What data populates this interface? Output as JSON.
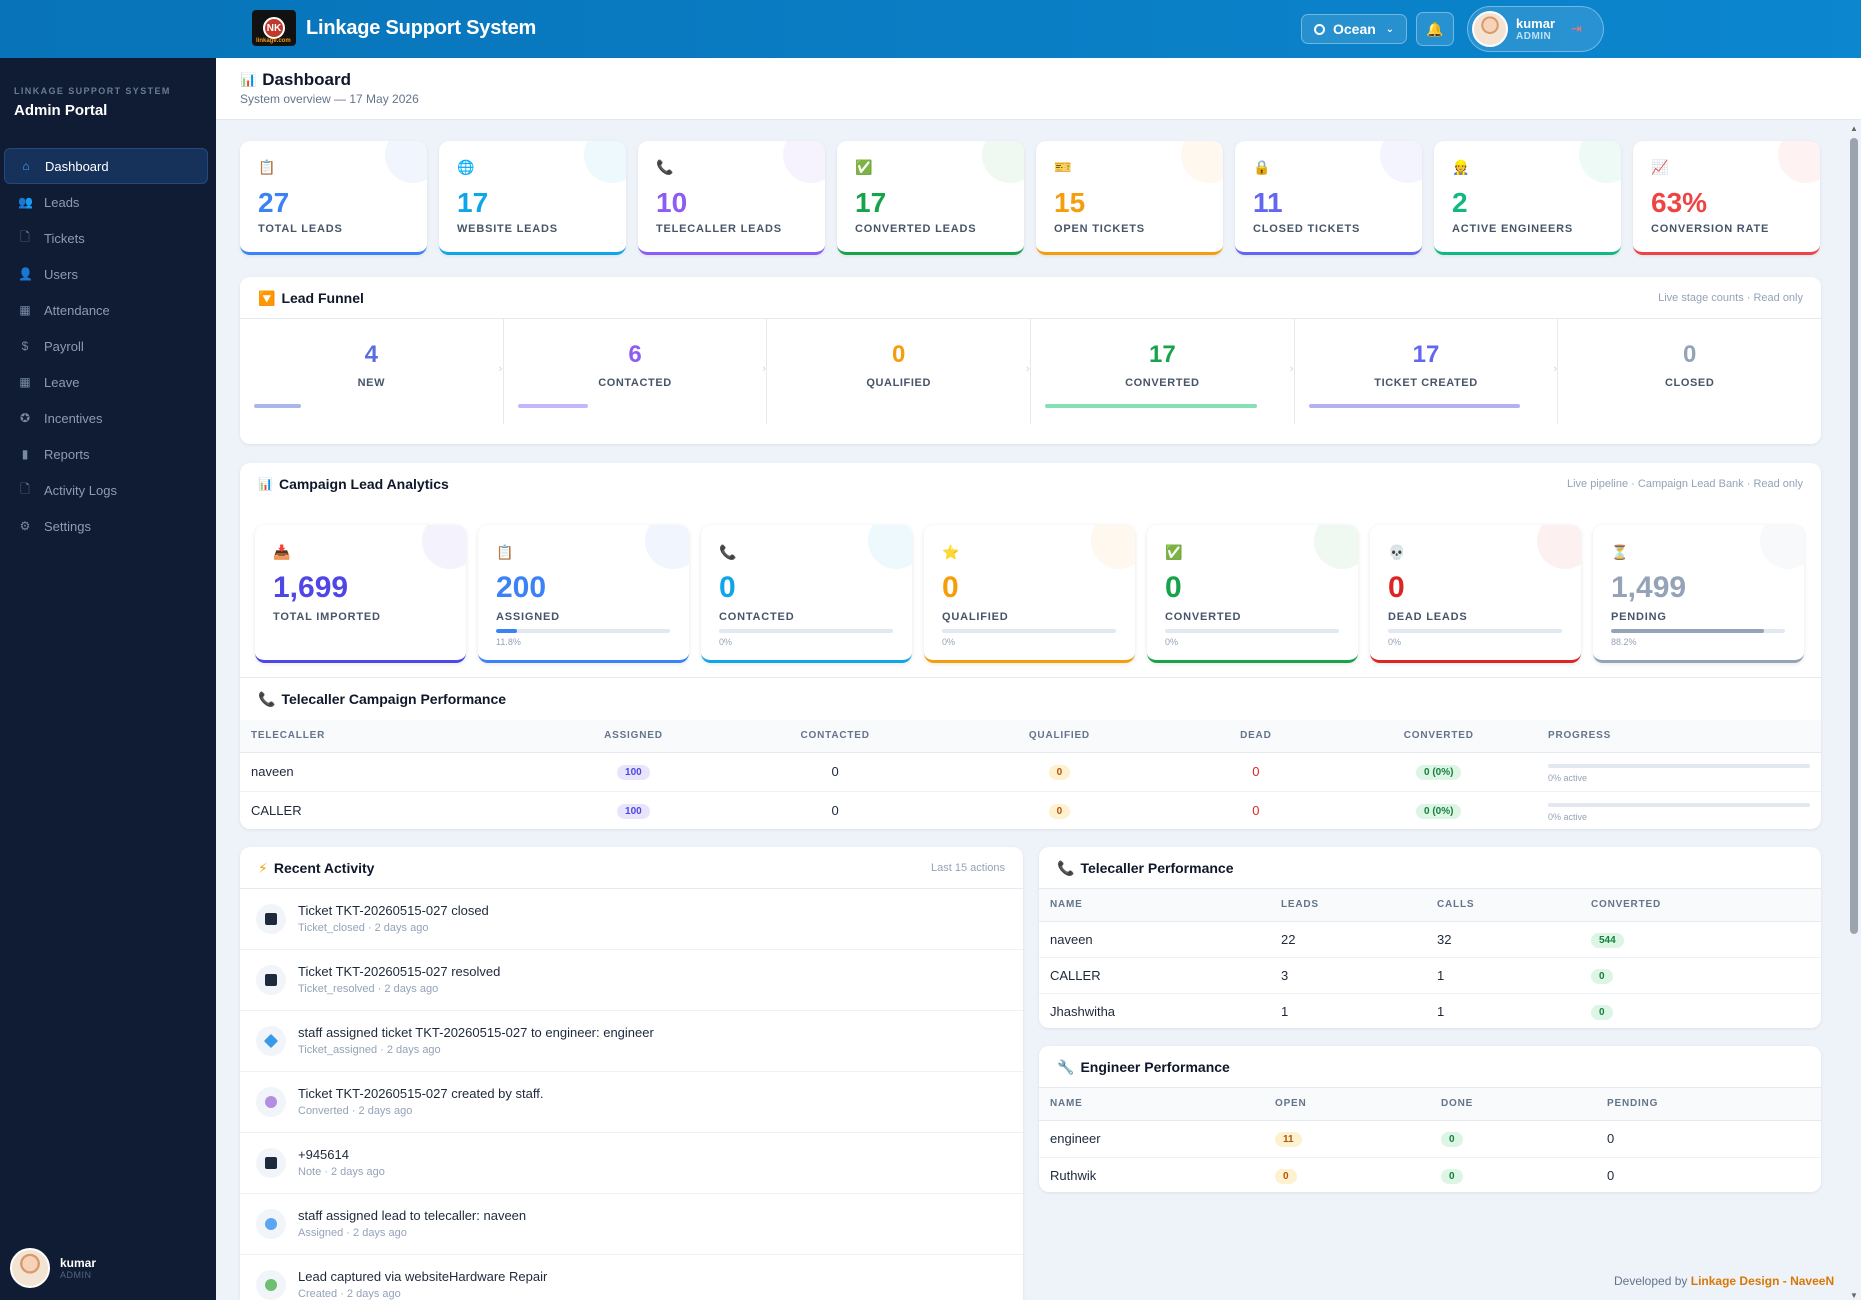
{
  "header": {
    "app_title": "Linkage Support System",
    "logo_text": "NK",
    "logo_small": "linkage.com",
    "theme_label": "Ocean",
    "user_name": "kumar",
    "user_role": "ADMIN"
  },
  "sidebar": {
    "system_label": "LINKAGE SUPPORT SYSTEM",
    "portal_title": "Admin Portal",
    "items": [
      {
        "label": "Dashboard",
        "icon": "home-icon",
        "active": true
      },
      {
        "label": "Leads",
        "icon": "users-icon"
      },
      {
        "label": "Tickets",
        "icon": "file-icon"
      },
      {
        "label": "Users",
        "icon": "user-icon"
      },
      {
        "label": "Attendance",
        "icon": "calendar-icon"
      },
      {
        "label": "Payroll",
        "icon": "dollar-icon"
      },
      {
        "label": "Leave",
        "icon": "calendar-icon"
      },
      {
        "label": "Incentives",
        "icon": "award-icon"
      },
      {
        "label": "Reports",
        "icon": "bar-chart-icon"
      },
      {
        "label": "Activity Logs",
        "icon": "file-icon"
      },
      {
        "label": "Settings",
        "icon": "gear-icon"
      }
    ],
    "footer_user": "kumar",
    "footer_role": "ADMIN"
  },
  "page": {
    "title": "Dashboard",
    "subtitle": "System overview — 17 May 2026"
  },
  "stats": [
    {
      "value": "27",
      "label": "TOTAL LEADS",
      "icon": "clipboard-icon",
      "glyph": "📋",
      "color": "#3b82f6"
    },
    {
      "value": "17",
      "label": "WEBSITE LEADS",
      "icon": "globe-icon",
      "glyph": "🌐",
      "color": "#0ea5e9"
    },
    {
      "value": "10",
      "label": "TELECALLER LEADS",
      "icon": "phone-icon",
      "glyph": "📞",
      "color": "#8b5cf6"
    },
    {
      "value": "17",
      "label": "CONVERTED LEADS",
      "icon": "check-icon",
      "glyph": "✅",
      "color": "#16a34a"
    },
    {
      "value": "15",
      "label": "OPEN TICKETS",
      "icon": "ticket-icon",
      "glyph": "🎫",
      "color": "#f59e0b"
    },
    {
      "value": "11",
      "label": "CLOSED TICKETS",
      "icon": "lock-icon",
      "glyph": "🔒",
      "color": "#6366f1"
    },
    {
      "value": "2",
      "label": "ACTIVE ENGINEERS",
      "icon": "engineer-icon",
      "glyph": "👷",
      "color": "#10b981"
    },
    {
      "value": "63%",
      "label": "CONVERSION RATE",
      "icon": "trend-icon",
      "glyph": "📈",
      "color": "#ef4444"
    }
  ],
  "funnel": {
    "title": "Lead Funnel",
    "note": "Live stage counts · Read only",
    "stages": [
      {
        "value": "4",
        "label": "NEW",
        "color": "#5b6ee1",
        "bar": "#a9b8e8",
        "fill": 0.2
      },
      {
        "value": "6",
        "label": "CONTACTED",
        "color": "#8b5cf6",
        "bar": "#c4b5fd",
        "fill": 0.3
      },
      {
        "value": "0",
        "label": "QUALIFIED",
        "color": "#f59e0b",
        "bar": "#fde68a",
        "fill": 0
      },
      {
        "value": "17",
        "label": "CONVERTED",
        "color": "#16a34a",
        "bar": "#86e0b5",
        "fill": 0.9
      },
      {
        "value": "17",
        "label": "TICKET CREATED",
        "color": "#6366f1",
        "bar": "#b4b1f2",
        "fill": 0.9
      },
      {
        "value": "0",
        "label": "CLOSED",
        "color": "#94a3b8",
        "bar": "#cbd5e1",
        "fill": 0
      }
    ]
  },
  "campaign": {
    "title": "Campaign Lead Analytics",
    "note": "Live pipeline · Campaign Lead Bank · Read only",
    "cards": [
      {
        "value": "1,699",
        "label": "TOTAL IMPORTED",
        "icon": "inbox-icon",
        "glyph": "📥",
        "color": "#4f46e5",
        "pct": null,
        "fill": 0
      },
      {
        "value": "200",
        "label": "ASSIGNED",
        "icon": "clipboard-icon",
        "glyph": "📋",
        "color": "#3b82f6",
        "pct": "11.8%",
        "fill": 0.118
      },
      {
        "value": "0",
        "label": "CONTACTED",
        "icon": "phone-icon",
        "glyph": "📞",
        "color": "#0ea5e9",
        "pct": "0%",
        "fill": 0
      },
      {
        "value": "0",
        "label": "QUALIFIED",
        "icon": "star-icon",
        "glyph": "⭐",
        "color": "#f59e0b",
        "pct": "0%",
        "fill": 0
      },
      {
        "value": "0",
        "label": "CONVERTED",
        "icon": "check-icon",
        "glyph": "✅",
        "color": "#16a34a",
        "pct": "0%",
        "fill": 0
      },
      {
        "value": "0",
        "label": "DEAD LEADS",
        "icon": "skull-icon",
        "glyph": "💀",
        "color": "#dc2626",
        "pct": "0%",
        "fill": 0
      },
      {
        "value": "1,499",
        "label": "PENDING",
        "icon": "hourglass-icon",
        "glyph": "⏳",
        "color": "#94a3b8",
        "pct": "88.2%",
        "fill": 0.882
      }
    ]
  },
  "tc_campaign": {
    "title": "Telecaller Campaign Performance",
    "columns": [
      "TELECALLER",
      "ASSIGNED",
      "CONTACTED",
      "QUALIFIED",
      "DEAD",
      "CONVERTED",
      "PROGRESS"
    ],
    "rows": [
      {
        "name": "naveen",
        "assigned": "100",
        "contacted": "0",
        "qualified": "0",
        "dead": "0",
        "converted": "0 (0%)",
        "progress": "0% active"
      },
      {
        "name": "CALLER",
        "assigned": "100",
        "contacted": "0",
        "qualified": "0",
        "dead": "0",
        "converted": "0 (0%)",
        "progress": "0% active"
      }
    ]
  },
  "activity": {
    "title": "Recent Activity",
    "note": "Last 15 actions",
    "items": [
      {
        "title": "Ticket TKT-20260515-027 closed",
        "meta": "Ticket_closed · 2 days ago",
        "dot": "#1e293b",
        "shape": "square"
      },
      {
        "title": "Ticket TKT-20260515-027 resolved",
        "meta": "Ticket_resolved · 2 days ago",
        "dot": "#1e293b",
        "shape": "square"
      },
      {
        "title": "staff assigned ticket TKT-20260515-027 to engineer: engineer",
        "meta": "Ticket_assigned · 2 days ago",
        "dot": "#3b9ae8",
        "shape": "diamond"
      },
      {
        "title": "Ticket TKT-20260515-027 created by staff.",
        "meta": "Converted · 2 days ago",
        "dot": "#b38ee0",
        "shape": "circle"
      },
      {
        "title": "+945614",
        "meta": "Note · 2 days ago",
        "dot": "#1e293b",
        "shape": "square"
      },
      {
        "title": "staff assigned lead to telecaller: naveen",
        "meta": "Assigned · 2 days ago",
        "dot": "#5aa6f2",
        "shape": "circle"
      },
      {
        "title": "Lead captured via websiteHardware Repair",
        "meta": "Created · 2 days ago",
        "dot": "#6cc070",
        "shape": "circle"
      }
    ]
  },
  "tc_perf": {
    "title": "Telecaller Performance",
    "columns": [
      "NAME",
      "LEADS",
      "CALLS",
      "CONVERTED"
    ],
    "rows": [
      {
        "name": "naveen",
        "leads": "22",
        "calls": "32",
        "converted": "544"
      },
      {
        "name": "CALLER",
        "leads": "3",
        "calls": "1",
        "converted": "0"
      },
      {
        "name": "Jhashwitha",
        "leads": "1",
        "calls": "1",
        "converted": "0"
      }
    ]
  },
  "eng_perf": {
    "title": "Engineer Performance",
    "columns": [
      "NAME",
      "OPEN",
      "DONE",
      "PENDING"
    ],
    "rows": [
      {
        "name": "engineer",
        "open": "11",
        "done": "0",
        "pending": "0"
      },
      {
        "name": "Ruthwik",
        "open": "0",
        "done": "0",
        "pending": "0"
      }
    ]
  },
  "footer": {
    "prefix": "Developed by",
    "credit": "Linkage Design - NaveeN"
  }
}
